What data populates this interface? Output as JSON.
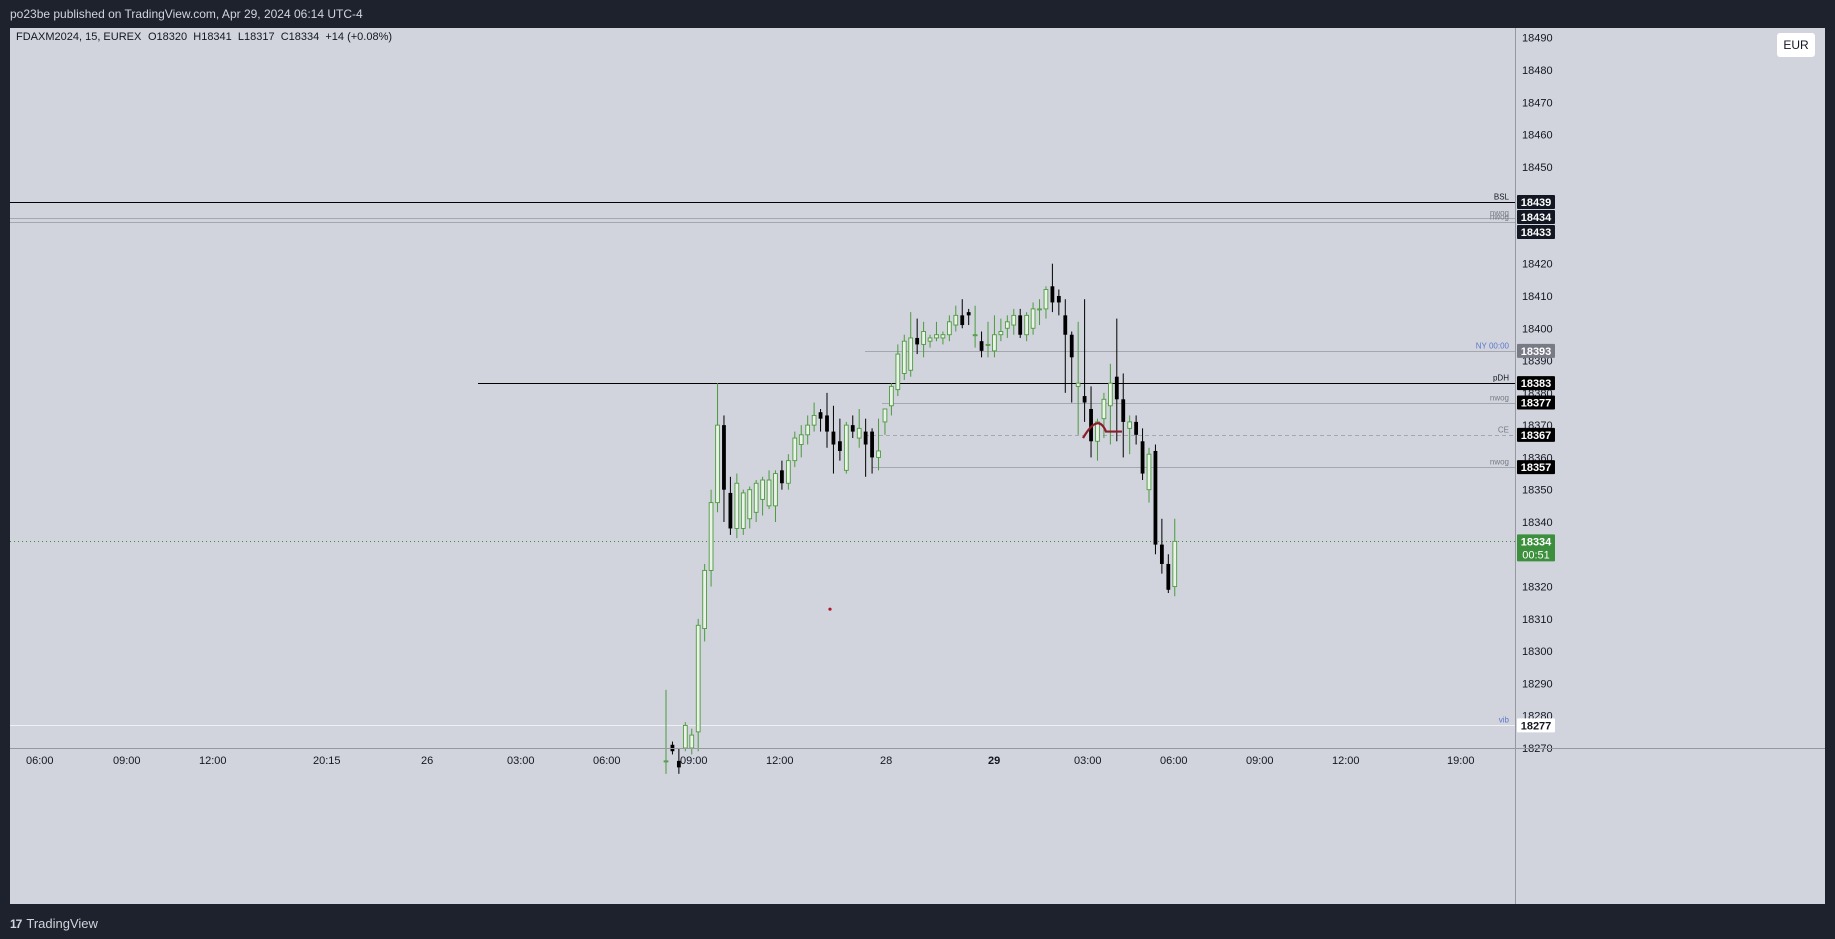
{
  "header": {
    "published": "po23be published on TradingView.com, Apr 29, 2024 06:14 UTC-4"
  },
  "footer": {
    "brand": "TradingView"
  },
  "legend": {
    "symbol": "FDAXM2024, 15, EUREX",
    "ohlc": "O18320  H18341  L18317  C18334  +14 (+0.08%)"
  },
  "currency": "EUR",
  "colors": {
    "up": "#4c9a3e",
    "down": "#000000",
    "background": "#d1d4dc",
    "current_price": "#3c8f3c",
    "ny_open": "#5b78c9"
  },
  "chart_data": {
    "type": "candlestick",
    "symbol": "FDAXM2024",
    "interval": "15",
    "exchange": "EUREX",
    "ylim": [
      18270,
      18493
    ],
    "y_ticks": [
      18270,
      18280,
      18290,
      18300,
      18310,
      18320,
      18330,
      18340,
      18350,
      18360,
      18370,
      18380,
      18390,
      18400,
      18410,
      18420,
      18430,
      18440,
      18450,
      18460,
      18470,
      18480,
      18490
    ],
    "x_ticks": [
      {
        "label": "06:00",
        "bold": false
      },
      {
        "label": "09:00",
        "bold": false
      },
      {
        "label": "12:00",
        "bold": false
      },
      {
        "label": "20:15",
        "bold": false
      },
      {
        "label": "26",
        "bold": false
      },
      {
        "label": "03:00",
        "bold": false
      },
      {
        "label": "06:00",
        "bold": false
      },
      {
        "label": "09:00",
        "bold": false
      },
      {
        "label": "12:00",
        "bold": false
      },
      {
        "label": "28",
        "bold": false
      },
      {
        "label": "29",
        "bold": true
      },
      {
        "label": "03:00",
        "bold": false
      },
      {
        "label": "06:00",
        "bold": false
      },
      {
        "label": "09:00",
        "bold": false
      },
      {
        "label": "12:00",
        "bold": false
      },
      {
        "label": "19:00",
        "bold": false
      }
    ],
    "candles": [
      [
        18266,
        18288,
        18262,
        18266
      ],
      [
        18271,
        18272,
        18268,
        18269
      ],
      [
        18266,
        18270,
        18262,
        18264
      ],
      [
        18270,
        18278,
        18269,
        18277
      ],
      [
        18270,
        18276,
        18268,
        18274
      ],
      [
        18275,
        18310,
        18269,
        18308
      ],
      [
        18307,
        18327,
        18303,
        18325
      ],
      [
        18325,
        18350,
        18320,
        18346
      ],
      [
        18346,
        18383,
        18343,
        18370
      ],
      [
        18370,
        18373,
        18340,
        18350
      ],
      [
        18349,
        18354,
        18336,
        18338
      ],
      [
        18338,
        18355,
        18335,
        18352
      ],
      [
        18338,
        18350,
        18336,
        18349
      ],
      [
        18341,
        18351,
        18338,
        18350
      ],
      [
        18343,
        18353,
        18340,
        18352
      ],
      [
        18347,
        18354,
        18342,
        18353
      ],
      [
        18345,
        18356,
        18344,
        18353
      ],
      [
        18345,
        18356,
        18340,
        18355
      ],
      [
        18356,
        18359,
        18350,
        18352
      ],
      [
        18352,
        18361,
        18350,
        18359
      ],
      [
        18359,
        18368,
        18357,
        18366
      ],
      [
        18364,
        18370,
        18360,
        18367
      ],
      [
        18367,
        18373,
        18364,
        18370
      ],
      [
        18370,
        18377,
        18368,
        18373
      ],
      [
        18374,
        18375,
        18368,
        18372
      ],
      [
        18373,
        18380,
        18363,
        18368
      ],
      [
        18368,
        18376,
        18355,
        18364
      ],
      [
        18365,
        18372,
        18359,
        18362
      ],
      [
        18356,
        18371,
        18355,
        18370
      ],
      [
        18370,
        18373,
        18366,
        18368
      ],
      [
        18366,
        18375,
        18363,
        18369
      ],
      [
        18368,
        18372,
        18354,
        18364
      ],
      [
        18368,
        18369,
        18355,
        18360
      ],
      [
        18360,
        18372,
        18356,
        18362
      ],
      [
        18371,
        18374,
        18367,
        18375
      ],
      [
        18376,
        18383,
        18373,
        18382
      ],
      [
        18381,
        18395,
        18379,
        18392
      ],
      [
        18386,
        18398,
        18384,
        18396
      ],
      [
        18387,
        18405,
        18385,
        18397
      ],
      [
        18397,
        18403,
        18392,
        18395
      ],
      [
        18395,
        18402,
        18391,
        18399
      ],
      [
        18396,
        18398,
        18394,
        18397
      ],
      [
        18397,
        18402,
        18396,
        18398
      ],
      [
        18397,
        18399,
        18395,
        18398
      ],
      [
        18398,
        18404,
        18396,
        18402
      ],
      [
        18401,
        18407,
        18399,
        18404
      ],
      [
        18404,
        18409,
        18400,
        18401
      ],
      [
        18405,
        18406,
        18401,
        18404
      ],
      [
        18398,
        18407,
        18394,
        18398
      ],
      [
        18396,
        18399,
        18391,
        18393
      ],
      [
        18395,
        18402,
        18391,
        18395
      ],
      [
        18393,
        18404,
        18391,
        18398
      ],
      [
        18398,
        18403,
        18396,
        18399
      ],
      [
        18400,
        18404,
        18397,
        18402
      ],
      [
        18401,
        18406,
        18398,
        18404
      ],
      [
        18404,
        18406,
        18397,
        18398
      ],
      [
        18398,
        18405,
        18396,
        18404
      ],
      [
        18400,
        18408,
        18398,
        18406
      ],
      [
        18406,
        18409,
        18401,
        18406
      ],
      [
        18406,
        18413,
        18403,
        18412
      ],
      [
        18413,
        18420,
        18405,
        18408
      ],
      [
        18410,
        18412,
        18404,
        18408
      ],
      [
        18404,
        18409,
        18380,
        18398
      ],
      [
        18398,
        18399,
        18377,
        18391
      ],
      [
        18382,
        18402,
        18367,
        18383
      ],
      [
        18379,
        18409,
        18371,
        18377
      ],
      [
        18375,
        18382,
        18360,
        18365
      ],
      [
        18365,
        18372,
        18359,
        18371
      ],
      [
        18372,
        18380,
        18366,
        18378
      ],
      [
        18376,
        18389,
        18364,
        18383
      ],
      [
        18385,
        18403,
        18365,
        18378
      ],
      [
        18378,
        18386,
        18360,
        18371
      ],
      [
        18369,
        18373,
        18361,
        18371
      ],
      [
        18371,
        18373,
        18364,
        18367
      ],
      [
        18365,
        18369,
        18353,
        18355
      ],
      [
        18350,
        18363,
        18346,
        18361
      ],
      [
        18362,
        18364,
        18330,
        18333
      ],
      [
        18333,
        18341,
        18324,
        18327
      ],
      [
        18327,
        18330,
        18318,
        18319
      ],
      [
        18320,
        18341,
        18317,
        18334
      ]
    ],
    "levels": [
      {
        "name": "BSL",
        "price": 18439
      },
      {
        "name": "nwog",
        "price": 18434
      },
      {
        "name": "nwog",
        "price": 18433
      },
      {
        "name": "NY 00:00",
        "price": 18393
      },
      {
        "name": "pDH",
        "price": 18383
      },
      {
        "name": "nwog",
        "price": 18377
      },
      {
        "name": "CE",
        "price": 18367
      },
      {
        "name": "nwog",
        "price": 18357
      },
      {
        "name": "vib",
        "price": 18277
      }
    ],
    "price_labels": [
      {
        "text": "18439"
      },
      {
        "text": "18434"
      },
      {
        "text": "18433"
      },
      {
        "text": "18393"
      },
      {
        "text": "18383"
      },
      {
        "text": "18377"
      },
      {
        "text": "18367"
      },
      {
        "text": "18357"
      },
      {
        "text": "18277"
      }
    ],
    "current_price": {
      "price": 18334,
      "label": "18334",
      "countdown": "00:51"
    }
  }
}
